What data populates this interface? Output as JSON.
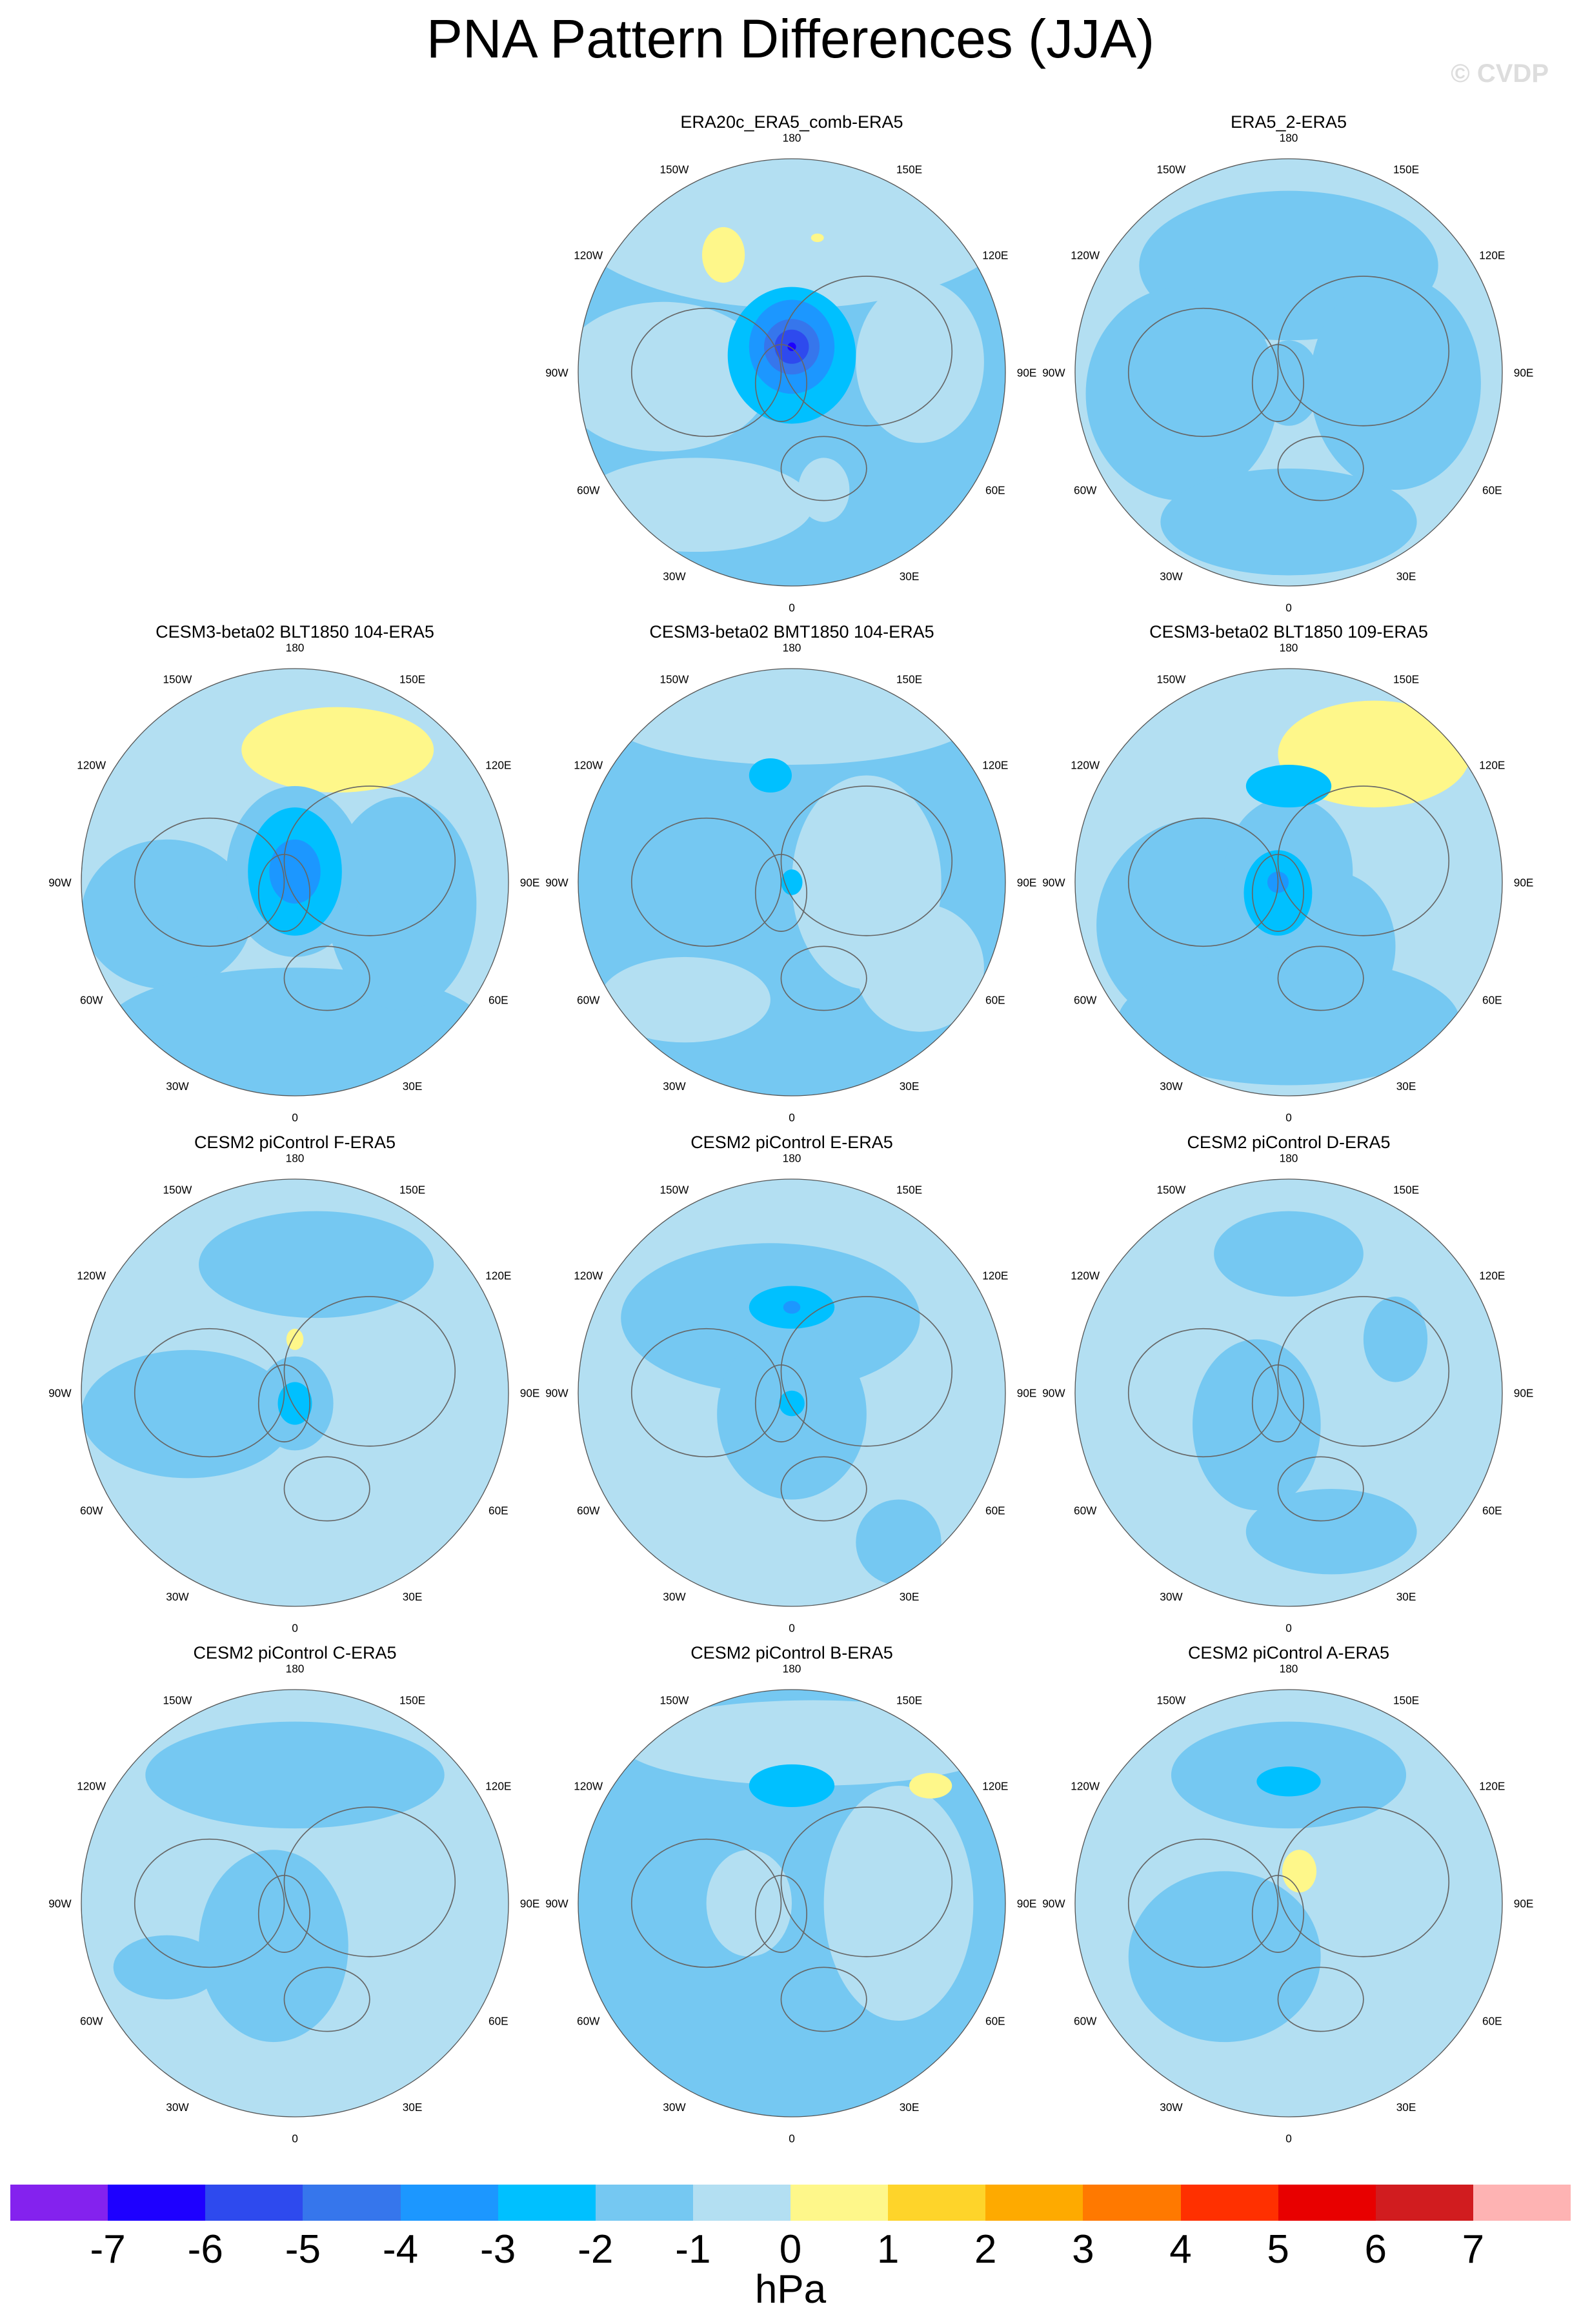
{
  "title": "PNA Pattern Differences (JJA)",
  "watermark": "© CVDP",
  "chart_data": {
    "type": "heatmap",
    "projection": "north polar stereographic",
    "longitude_labels": [
      "180",
      "150E",
      "120E",
      "90E",
      "60E",
      "30E",
      "0",
      "30W",
      "60W",
      "90W",
      "120W",
      "150W"
    ],
    "panels": [
      {
        "title": "ERA20c_ERA5_comb-ERA5",
        "min_value_approx": -6,
        "max_value_approx": 2
      },
      {
        "title": "ERA5_2-ERA5",
        "min_value_approx": -1,
        "max_value_approx": 1
      },
      {
        "title": "CESM3-beta02 BLT1850 104-ERA5",
        "min_value_approx": -4,
        "max_value_approx": 2
      },
      {
        "title": "CESM3-beta02 BMT1850 104-ERA5",
        "min_value_approx": -2,
        "max_value_approx": 2
      },
      {
        "title": "CESM3-beta02 BLT1850 109-ERA5",
        "min_value_approx": -3,
        "max_value_approx": 2
      },
      {
        "title": "CESM2 piControl F-ERA5",
        "min_value_approx": -2,
        "max_value_approx": 2
      },
      {
        "title": "CESM2 piControl E-ERA5",
        "min_value_approx": -3,
        "max_value_approx": 1
      },
      {
        "title": "CESM2 piControl D-ERA5",
        "min_value_approx": -2,
        "max_value_approx": 2
      },
      {
        "title": "CESM2 piControl C-ERA5",
        "min_value_approx": -1,
        "max_value_approx": 1
      },
      {
        "title": "CESM2 piControl B-ERA5",
        "min_value_approx": -2,
        "max_value_approx": 2
      },
      {
        "title": "CESM2 piControl A-ERA5",
        "min_value_approx": -2,
        "max_value_approx": 2
      }
    ],
    "colorbar": {
      "levels": [
        "-7",
        "-6",
        "-5",
        "-4",
        "-3",
        "-2",
        "-1",
        "0",
        "1",
        "2",
        "3",
        "4",
        "5",
        "6",
        "7"
      ],
      "colors": [
        "#8422ee",
        "#1e00ff",
        "#2e4aee",
        "#3676ec",
        "#1c97ff",
        "#00c0ff",
        "#75c8f2",
        "#b3dff2",
        "#fef78a",
        "#fed42a",
        "#feaa00",
        "#ff7900",
        "#ff3000",
        "#e80000",
        "#d11c1f",
        "#feb3b3"
      ],
      "units": "hPa"
    }
  }
}
